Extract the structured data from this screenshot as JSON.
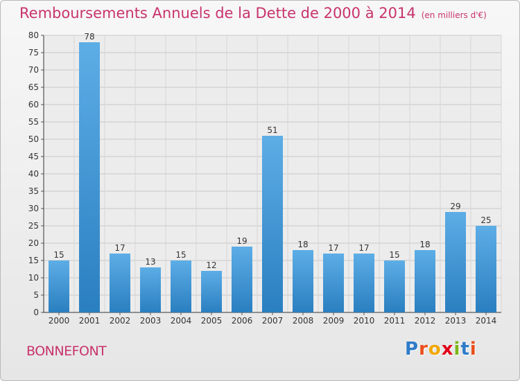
{
  "title": "Remboursements Annuels de la Dette de 2000 à 2014",
  "unit": "(en milliers d'€)",
  "commune": "BONNEFONT",
  "logo": {
    "text": "Proxiti",
    "colors": [
      "#2e7bc9",
      "#e94e1b",
      "#f1a700",
      "#e2001a",
      "#7cb518",
      "#2e7bc9",
      "#e94e1b"
    ]
  },
  "chart_data": {
    "type": "bar",
    "categories": [
      "2000",
      "2001",
      "2002",
      "2003",
      "2004",
      "2005",
      "2006",
      "2007",
      "2008",
      "2009",
      "2010",
      "2011",
      "2012",
      "2013",
      "2014"
    ],
    "values": [
      15,
      78,
      17,
      13,
      15,
      12,
      19,
      51,
      18,
      17,
      17,
      15,
      18,
      29,
      25
    ],
    "ylim": [
      0,
      80
    ],
    "yticks": [
      0,
      5,
      10,
      15,
      20,
      25,
      30,
      35,
      40,
      45,
      50,
      55,
      60,
      65,
      70,
      75,
      80
    ],
    "grid": true,
    "bar_color_top": "#5dade6",
    "bar_color_bottom": "#2a7fc0",
    "title_color": "#c8336c"
  }
}
